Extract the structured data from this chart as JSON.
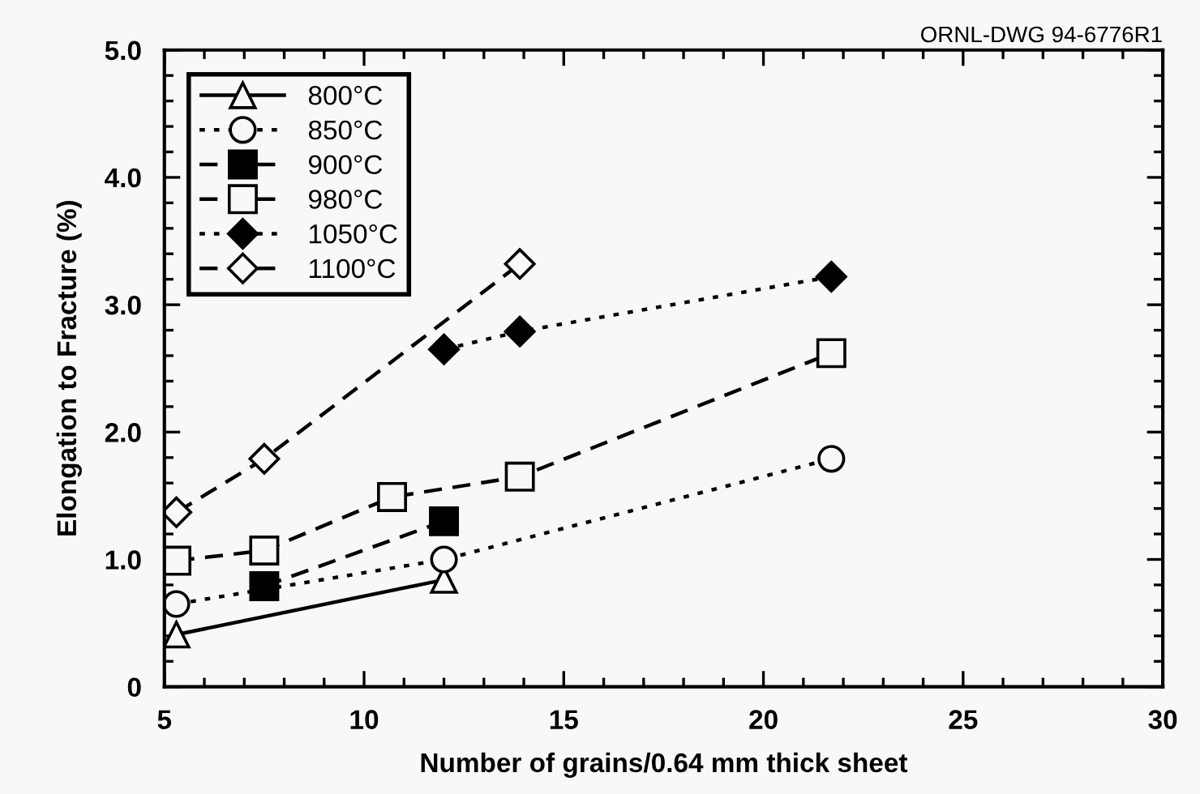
{
  "chart_data": {
    "type": "line",
    "xlabel": "Number of grains/0.64 mm thick sheet",
    "ylabel": "Elongation to Fracture (%)",
    "annotations": [
      "ORNL-DWG 94-6776R1"
    ],
    "xlim": [
      5,
      30
    ],
    "xticks": [
      5,
      10,
      15,
      20,
      25,
      30
    ],
    "ylim": [
      0,
      5
    ],
    "yticks": [
      0,
      {
        "value": 1,
        "label": "1.0"
      },
      {
        "value": 2,
        "label": "2.0"
      },
      {
        "value": 3,
        "label": "3.0"
      },
      {
        "value": 4,
        "label": "4.0"
      },
      {
        "value": 5,
        "label": "5.0"
      }
    ],
    "grid": false,
    "legend": "top left",
    "series": [
      {
        "name": "800°C",
        "color": "#000000",
        "colors": [
          "#f8f8f8",
          "#f8f8f8"
        ],
        "marker": "triangle",
        "line_style": "solid",
        "x": [
          5.3,
          12.0
        ],
        "values": [
          0.41,
          0.84
        ]
      },
      {
        "name": "850°C",
        "color": "#000000",
        "colors": [
          "#f8f8f8",
          "#f8f8f8",
          "#f8f8f8"
        ],
        "marker": "circle",
        "line_style": "dotted",
        "x": [
          5.3,
          12.0,
          21.7
        ],
        "values": [
          0.65,
          1.0,
          1.79
        ]
      },
      {
        "name": "900°C",
        "color": "#000000",
        "colors": [
          "#000000",
          "#000000"
        ],
        "marker": "square",
        "line_style": "dashed",
        "x": [
          7.5,
          12.0
        ],
        "values": [
          0.79,
          1.3
        ]
      },
      {
        "name": "980°C",
        "color": "#000000",
        "colors": [
          "#f8f8f8",
          "#f8f8f8",
          "#f8f8f8",
          "#f8f8f8",
          "#f8f8f8"
        ],
        "marker": "square",
        "line_style": "dashed",
        "x": [
          5.3,
          7.5,
          10.7,
          13.9,
          21.7
        ],
        "values": [
          0.99,
          1.07,
          1.49,
          1.65,
          2.62
        ]
      },
      {
        "name": "1050°C",
        "color": "#000000",
        "colors": [
          "#000000",
          "#000000",
          "#000000"
        ],
        "marker": "diamond",
        "line_style": "dotted",
        "x": [
          12.0,
          13.9,
          21.7
        ],
        "values": [
          2.65,
          2.79,
          3.22
        ]
      },
      {
        "name": "1100°C",
        "color": "#000000",
        "colors": [
          "#f8f8f8",
          "#f8f8f8",
          "#f8f8f8"
        ],
        "marker": "diamond",
        "line_style": "dashed",
        "x": [
          5.3,
          7.5,
          13.9
        ],
        "values": [
          1.37,
          1.79,
          3.32
        ]
      }
    ]
  }
}
